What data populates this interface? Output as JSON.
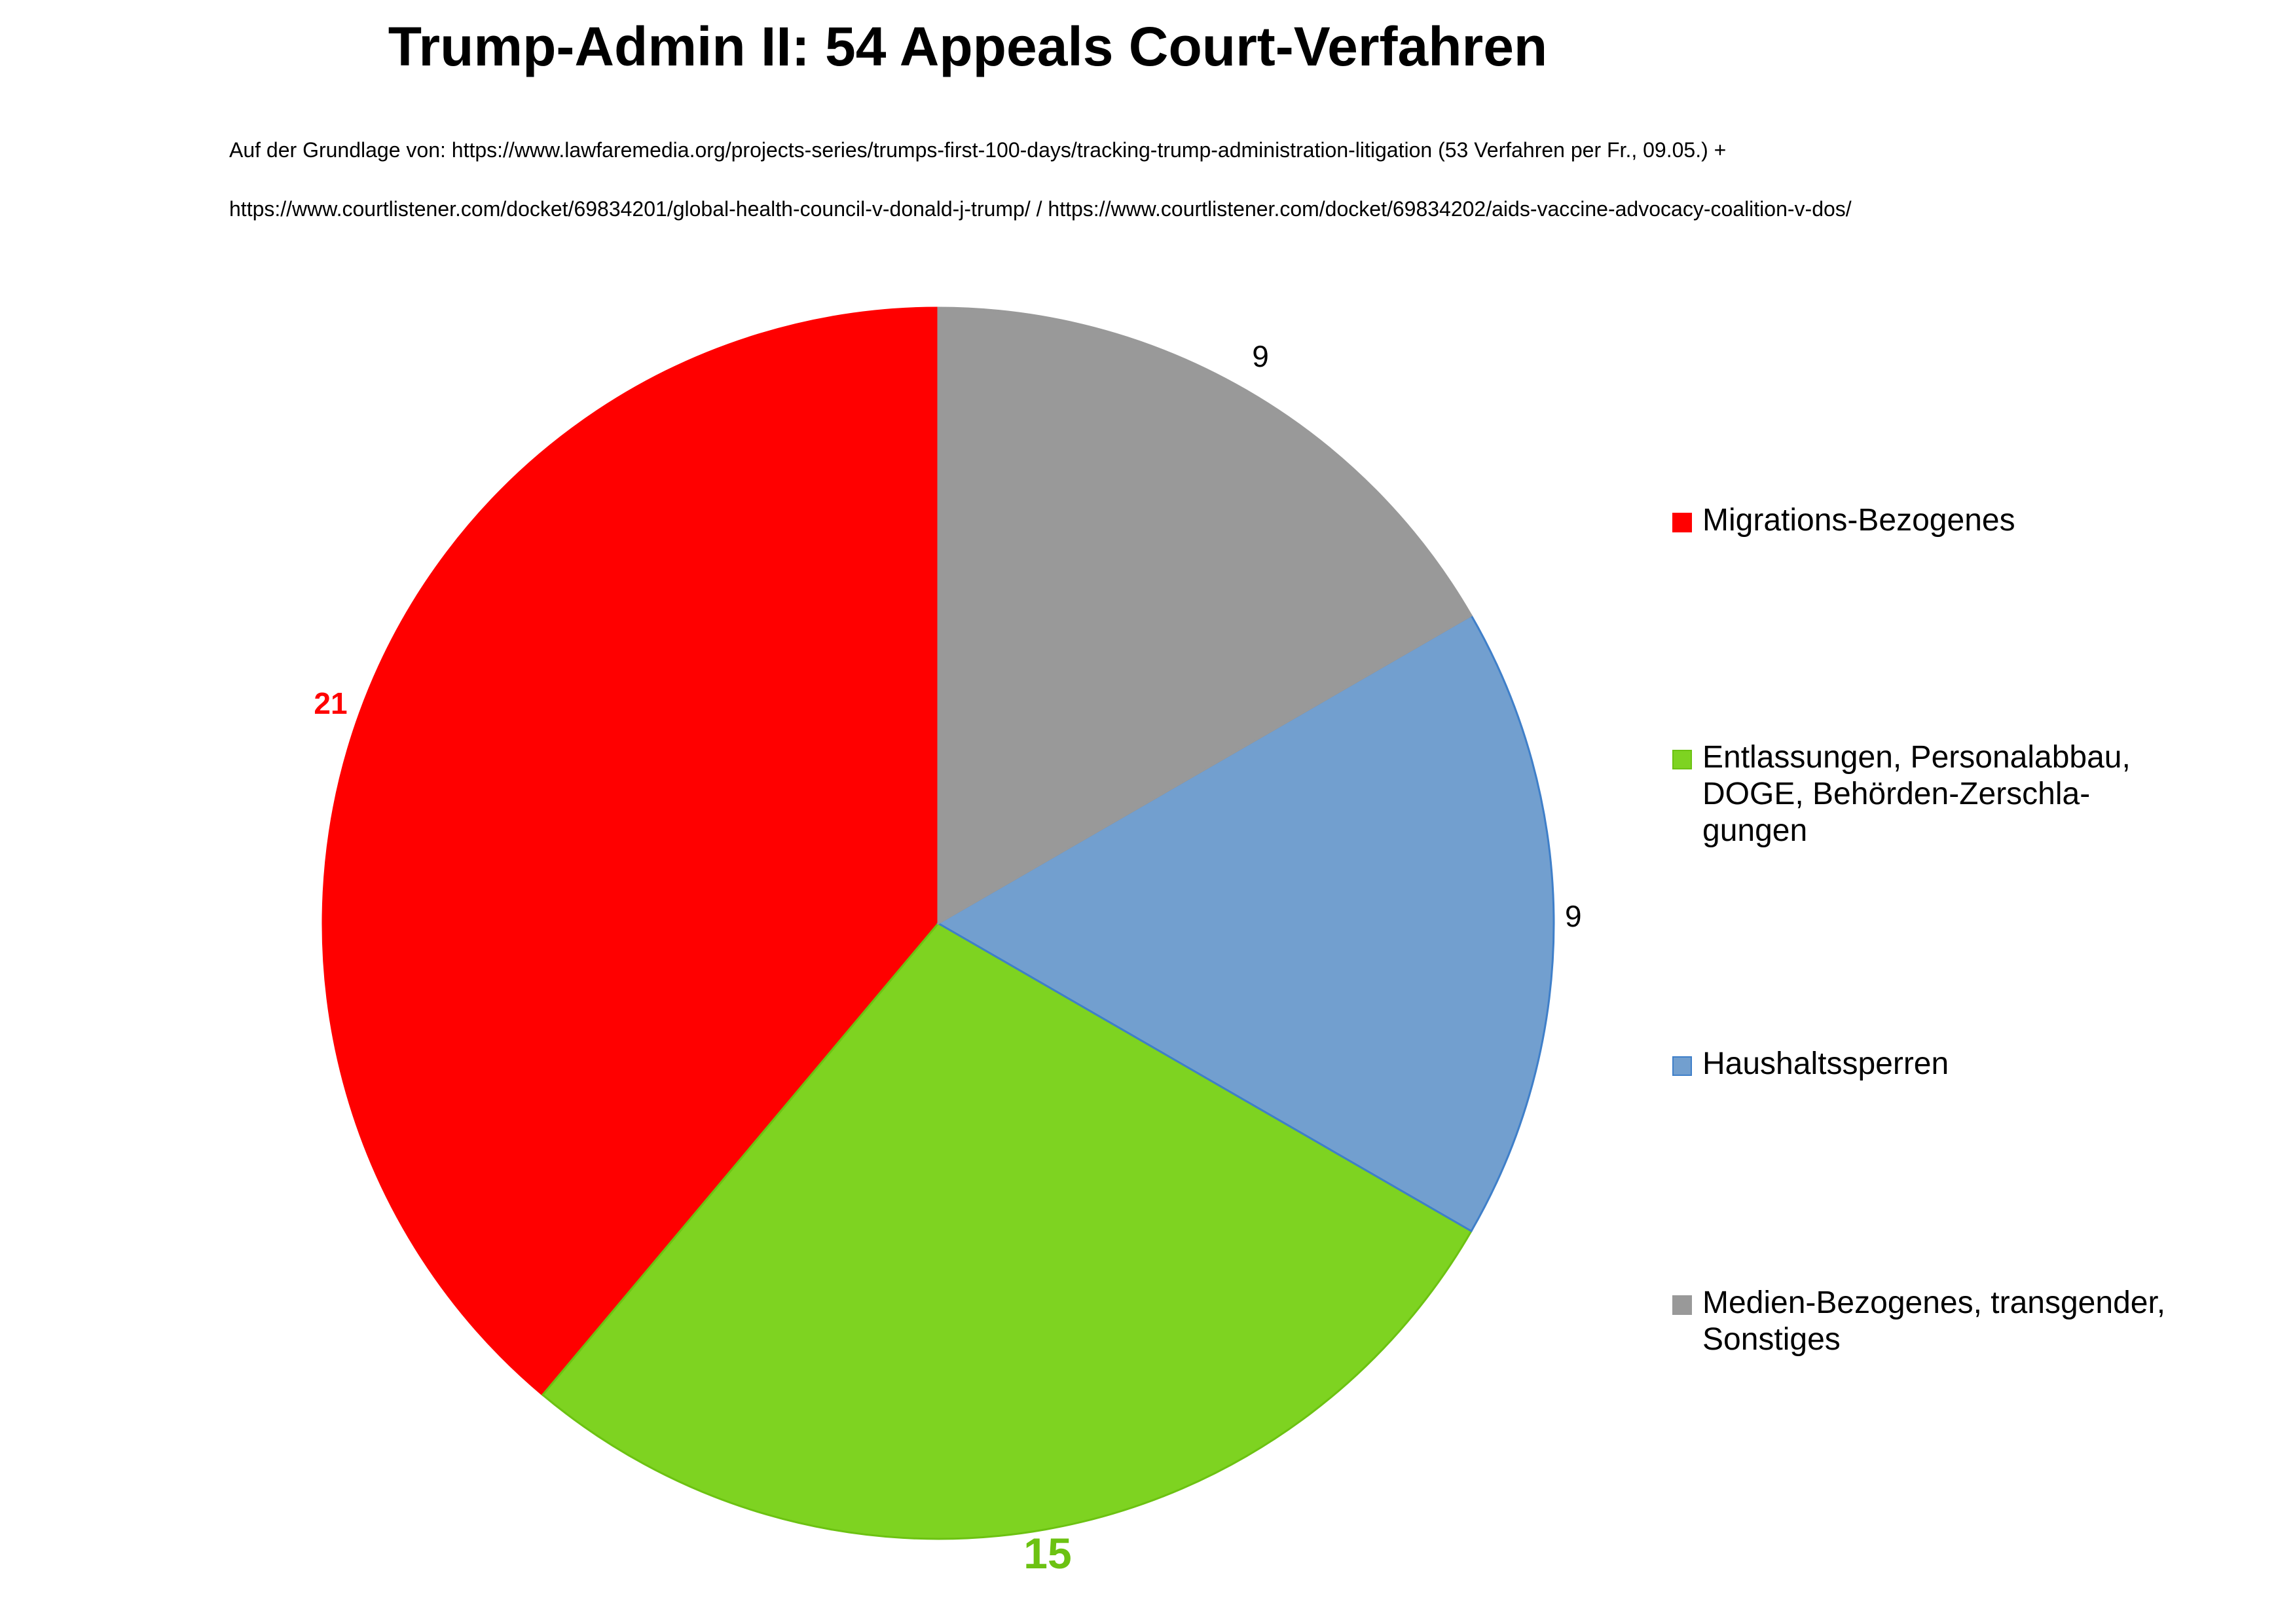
{
  "chart_data": {
    "type": "pie",
    "title": "Trump-Admin II: 54 Appeals Court-Verfahren",
    "subtitle_lines": [
      "Auf der Grundlage von: https://www.lawfaremedia.org/projects-series/trumps-first-100-days/tracking-trump-administration-litigation (53 Verfahren per Fr., 09.05.) +",
      "https://www.courtlistener.com/docket/69834201/global-health-council-v-donald-j-trump/ / https://www.courtlistener.com/docket/69834202/aids-vaccine-advocacy-coalition-v-dos/"
    ],
    "legend_position": "right",
    "slices": [
      {
        "label": "Migrations-Bezogenes",
        "legend_lines": [
          "Migrations-Bezogenes"
        ],
        "value": 21,
        "value_label": "21",
        "color": "#ff0000",
        "stroke": "#ff0000",
        "label_color": "#ff0000",
        "label_bold": true
      },
      {
        "label": "Entlassungen, Personalabbau, DOGE, Behörden-Zerschla-gungen",
        "legend_lines": [
          "Entlassungen, Personalabbau,",
          "DOGE, Behörden-Zerschla-",
          "gungen"
        ],
        "value": 15,
        "value_label": "15",
        "color": "#7ed321",
        "stroke": "#6cc212",
        "label_color": "#6cc212",
        "label_bold": true
      },
      {
        "label": "Haushaltssperren",
        "legend_lines": [
          "Haushaltssperren"
        ],
        "value": 9,
        "value_label": "9",
        "color": "#729fcf",
        "stroke": "#3f7fc9",
        "label_color": "#000000",
        "label_bold": false
      },
      {
        "label": "Medien-Bezogenes, transgender, Sonstiges",
        "legend_lines": [
          "Medien-Bezogenes, transgender,",
          "Sonstiges"
        ],
        "value": 9,
        "value_label": "9",
        "color": "#999999",
        "stroke": "#999999",
        "label_color": "#000000",
        "label_bold": false
      }
    ]
  }
}
